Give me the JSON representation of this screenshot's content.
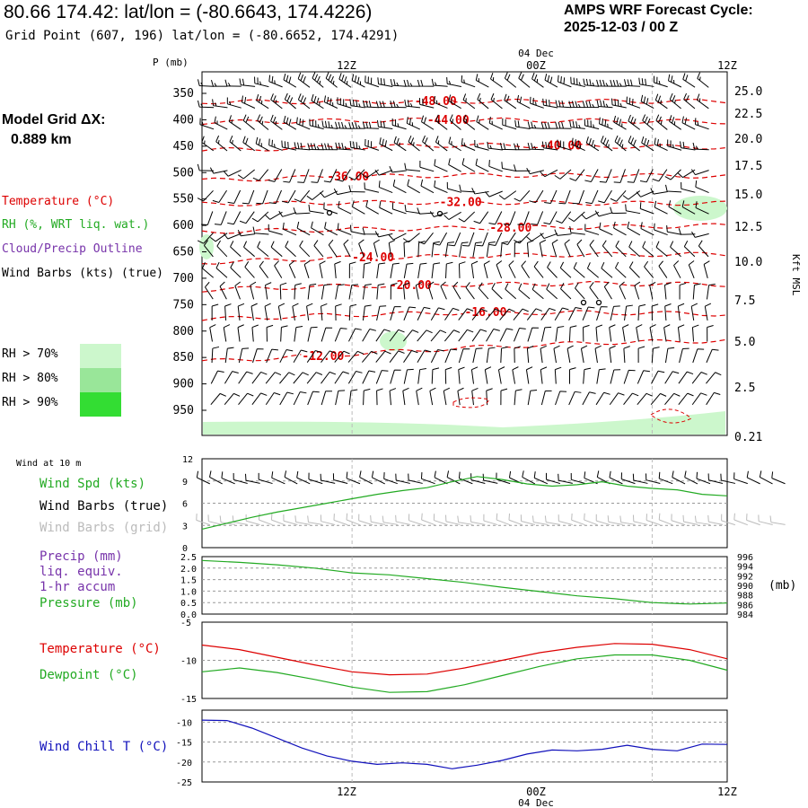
{
  "header": {
    "title": "80.66 174.42:  lat/lon = (-80.6643, 174.4226)",
    "subtitle": "Grid Point (607, 196) lat/lon = (-80.6652, 174.4291)",
    "cycle_line1": "AMPS WRF Forecast Cycle:",
    "cycle_line2": "2025-12-03 / 00  Z"
  },
  "model_grid": {
    "line1": "Model Grid ΔX:",
    "line2": "0.889 km"
  },
  "legend": {
    "temperature": "Temperature (°C)",
    "rh": "RH (%, WRT liq. wat.)",
    "cloud": "Cloud/Precip Outline",
    "wind": "Wind Barbs (kts) (true)",
    "rh70": "RH > 70%",
    "rh80": "RH > 80%",
    "rh90": "RH > 90%"
  },
  "colors": {
    "temperature": "#dd0000",
    "rh": "#22aa22",
    "cloud": "#7733aa",
    "wind_chill": "#1111bb",
    "rh70": "#ccf7cc",
    "rh80": "#99e699",
    "rh90": "#33dd33",
    "grid_barbs": "#bbbbbb"
  },
  "time_axis": {
    "top_labels": [
      "12Z",
      "00Z",
      "12Z"
    ],
    "bottom_labels": [
      "12Z",
      "00Z",
      "12Z"
    ],
    "date_label": "04 Dec"
  },
  "chart_data": [
    {
      "type": "line",
      "name": "upper-air",
      "ylabel_left": "P (mb)",
      "ylabel_right": "Kft MSL",
      "pressure_ticks": [
        "350",
        "400",
        "450",
        "500",
        "550",
        "600",
        "650",
        "700",
        "750",
        "800",
        "850",
        "900",
        "950"
      ],
      "height_ticks": [
        "25.0",
        "22.5",
        "20.0",
        "17.5",
        "15.0",
        "12.5",
        "10.0",
        "7.5",
        "5.0",
        "2.5",
        "0.21"
      ],
      "isotherm_labels": [
        "-48.00",
        "-44.00",
        "-40.00",
        "-36.00",
        "-32.00",
        "-28.00",
        "-24.00",
        "-20.00",
        "-16.00",
        "-12.00"
      ],
      "hours": [
        -6,
        36
      ],
      "isotherms": [
        {
          "t": -48,
          "p": [
            366,
            366,
            365,
            365,
            365
          ]
        },
        {
          "t": -44,
          "p": [
            405,
            402,
            400,
            402,
            404
          ]
        },
        {
          "t": -40,
          "p": [
            458,
            452,
            448,
            450,
            452
          ]
        },
        {
          "t": -36,
          "p": [
            515,
            508,
            505,
            505,
            507
          ]
        },
        {
          "t": -32,
          "p": [
            560,
            557,
            556,
            558,
            558
          ]
        },
        {
          "t": -28,
          "p": [
            612,
            608,
            605,
            603,
            600
          ]
        },
        {
          "t": -24,
          "p": [
            670,
            662,
            658,
            655,
            655
          ]
        },
        {
          "t": -20,
          "p": [
            722,
            715,
            712,
            710,
            712
          ]
        },
        {
          "t": -16,
          "p": [
            778,
            770,
            765,
            765,
            768
          ]
        },
        {
          "t": -12,
          "p": [
            858,
            845,
            832,
            822,
            818
          ]
        }
      ]
    },
    {
      "type": "line",
      "name": "wind-10m",
      "title": "Wind at 10 m",
      "series_labels": [
        "Wind Spd (kts)",
        "Wind Barbs (true)",
        "Wind Barbs (grid)"
      ],
      "yticks": [
        "0",
        "3",
        "6",
        "9",
        "12"
      ],
      "ylim": [
        0,
        12
      ],
      "hours": [
        -6,
        -4,
        -2,
        0,
        2,
        4,
        6,
        8,
        10,
        12,
        14,
        16,
        18,
        20,
        22,
        24,
        26,
        28,
        30,
        32,
        34,
        36
      ],
      "speed": [
        2.5,
        3.3,
        4.1,
        4.8,
        5.4,
        6.0,
        6.6,
        7.2,
        7.7,
        8.1,
        8.9,
        9.6,
        9.2,
        8.6,
        8.3,
        8.5,
        8.9,
        8.3,
        8.0,
        7.8,
        7.2,
        7.0
      ]
    },
    {
      "type": "line",
      "name": "precip-pressure",
      "series_labels": [
        "Precip (mm)",
        "liq. equiv.",
        "1-hr accum",
        "Pressure (mb)"
      ],
      "yticks_left": [
        "0.0",
        "0.5",
        "1.0",
        "1.5",
        "2.0",
        "2.5"
      ],
      "yticks_right": [
        "996",
        "994",
        "992",
        "990",
        "988",
        "986",
        "984"
      ],
      "unit_right": "(mb)",
      "ylim_left": [
        0,
        2.5
      ],
      "ylim_right": [
        984,
        996
      ],
      "hours": [
        -6,
        -3,
        0,
        3,
        6,
        9,
        12,
        15,
        18,
        21,
        24,
        27,
        30,
        33,
        36
      ],
      "pressure": [
        995.2,
        994.8,
        994.3,
        993.6,
        992.6,
        992.2,
        991.4,
        990.6,
        989.6,
        988.7,
        987.8,
        987.2,
        986.4,
        986.1,
        986.3
      ]
    },
    {
      "type": "line",
      "name": "temp-dewpoint",
      "series_labels": [
        "Temperature (°C)",
        "Dewpoint (°C)"
      ],
      "yticks": [
        "-5",
        "-10",
        "-15"
      ],
      "ylim": [
        -15,
        -5
      ],
      "hours": [
        -6,
        -3,
        0,
        3,
        6,
        9,
        12,
        15,
        18,
        21,
        24,
        27,
        30,
        33,
        36
      ],
      "temperature": [
        -8.0,
        -8.6,
        -9.6,
        -10.6,
        -11.5,
        -11.9,
        -11.8,
        -11.0,
        -10.0,
        -9.0,
        -8.3,
        -7.8,
        -7.9,
        -8.6,
        -9.8
      ],
      "dewpoint": [
        -11.5,
        -11.0,
        -11.6,
        -12.5,
        -13.5,
        -14.2,
        -14.1,
        -13.2,
        -12.0,
        -10.8,
        -9.8,
        -9.3,
        -9.3,
        -10.0,
        -11.3
      ]
    },
    {
      "type": "line",
      "name": "wind-chill",
      "series_labels": [
        "Wind Chill T (°C)"
      ],
      "yticks": [
        "-10",
        "-15",
        "-20",
        "-25"
      ],
      "ylim": [
        -25,
        -7
      ],
      "hours": [
        -6,
        -4,
        -2,
        0,
        2,
        4,
        6,
        8,
        10,
        12,
        14,
        16,
        18,
        20,
        22,
        24,
        26,
        28,
        30,
        32,
        34,
        36
      ],
      "wind_chill": [
        -9.5,
        -9.6,
        -11.5,
        -14.0,
        -16.5,
        -18.5,
        -19.8,
        -20.6,
        -20.2,
        -20.6,
        -21.7,
        -20.8,
        -19.6,
        -18.0,
        -17.0,
        -17.2,
        -16.8,
        -15.8,
        -16.8,
        -17.2,
        -15.5,
        -15.6
      ]
    }
  ]
}
